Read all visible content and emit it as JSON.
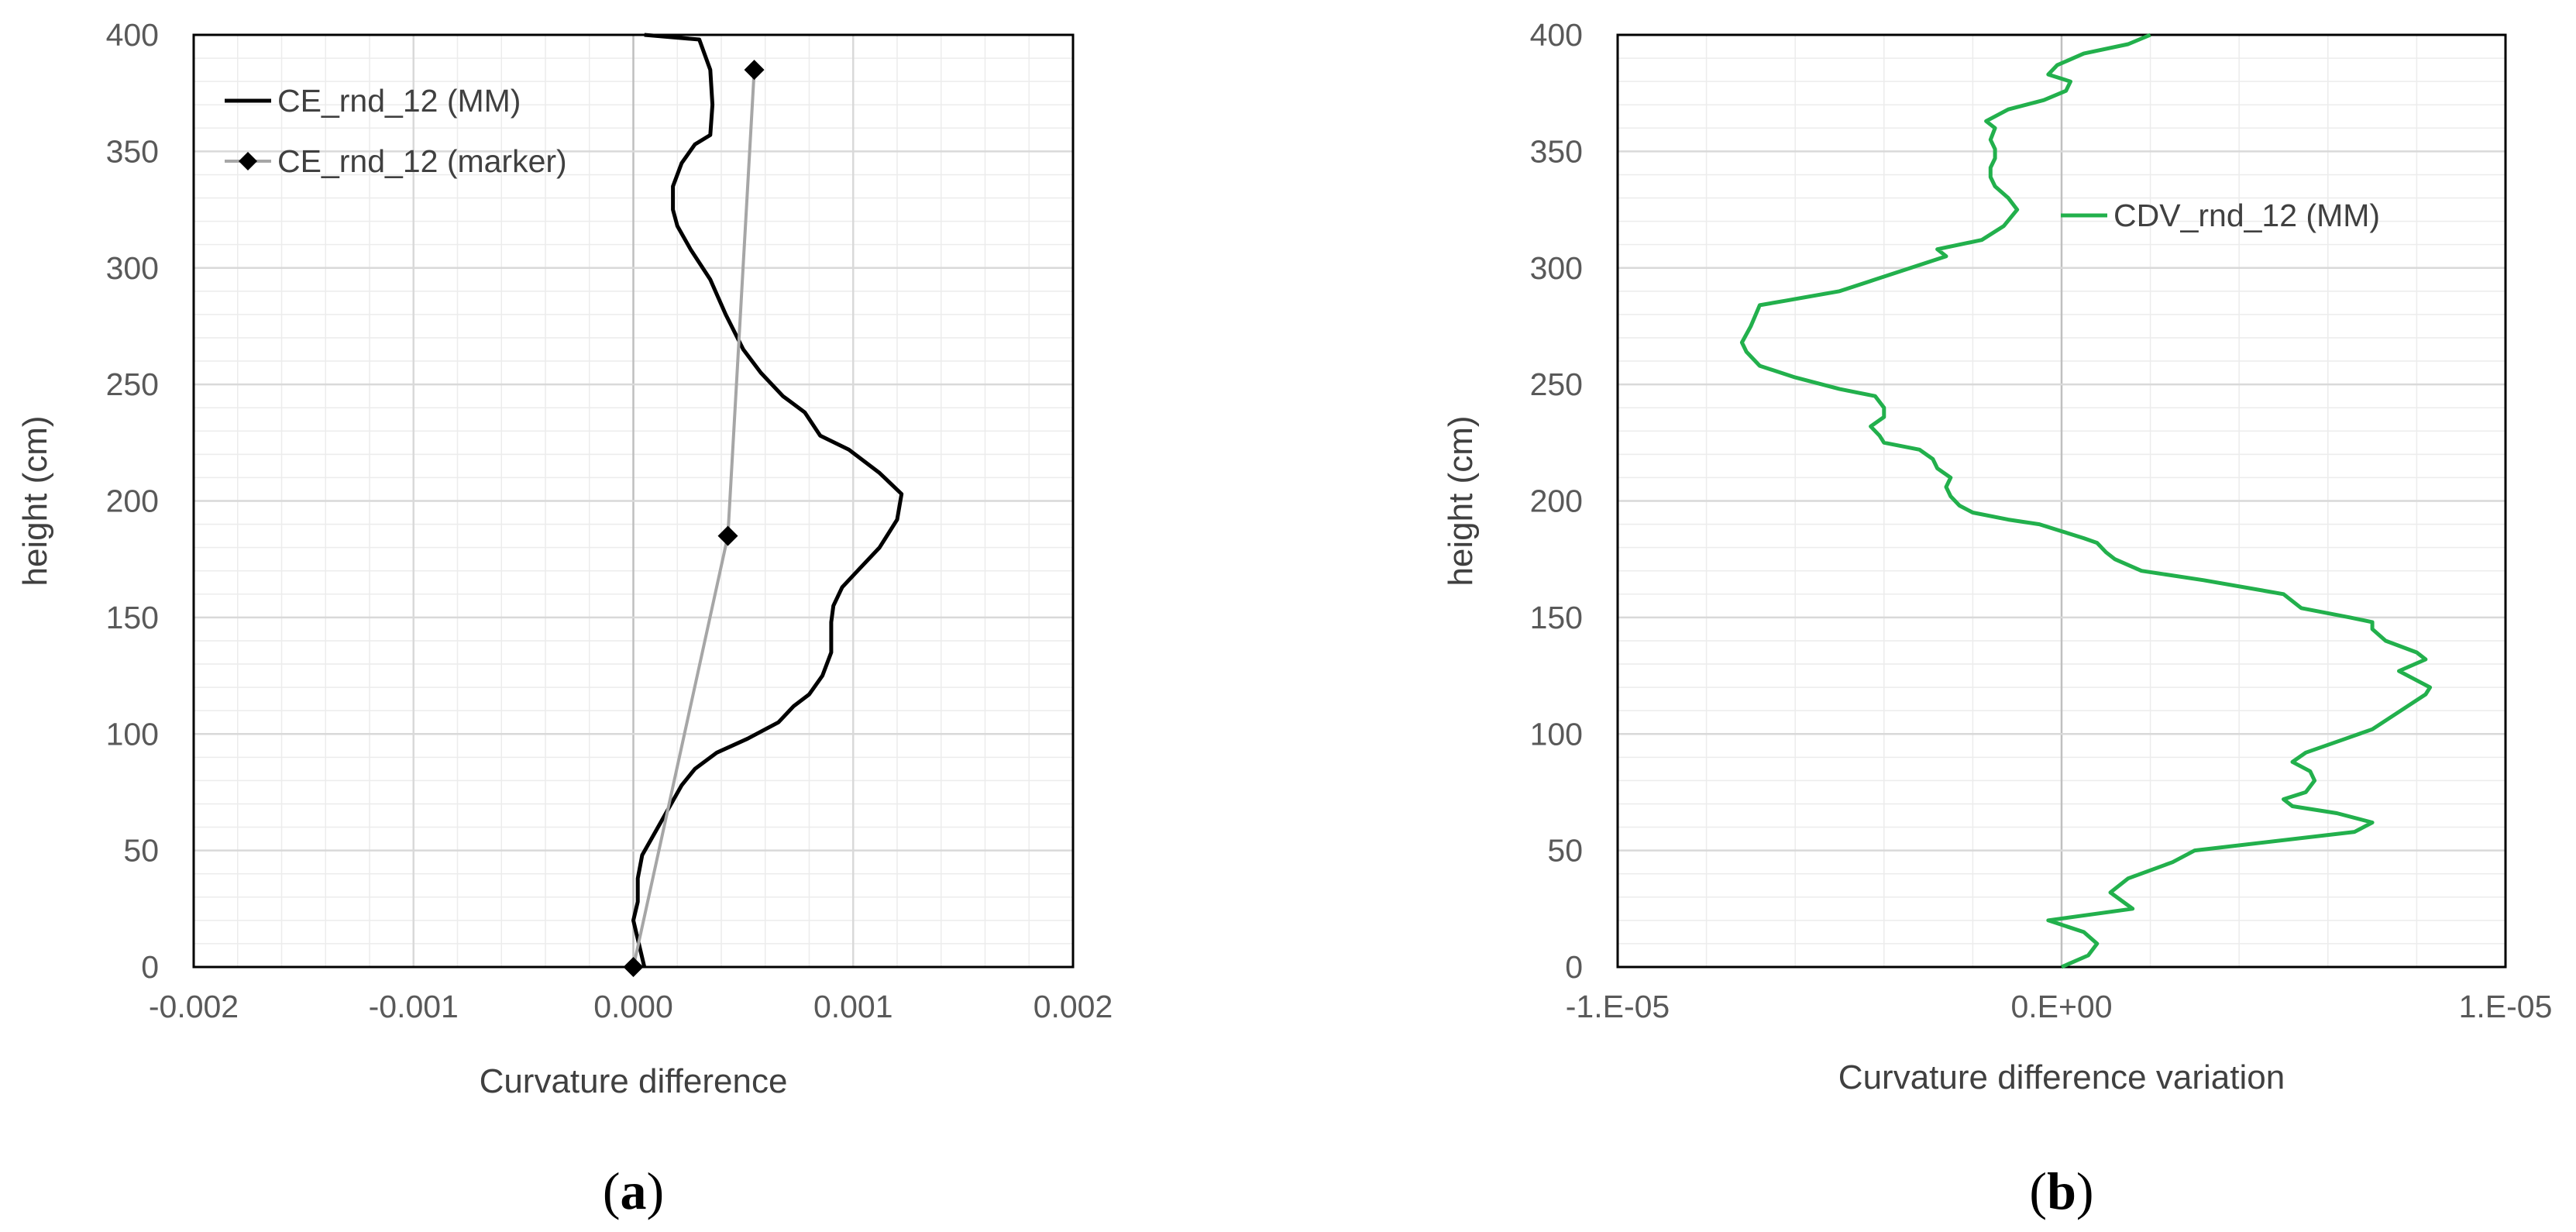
{
  "chart_data": [
    {
      "panel_label": "a",
      "type": "line",
      "xlabel": "Curvature difference",
      "ylabel": "height (cm)",
      "xlim": [
        -0.002,
        0.002
      ],
      "ylim": [
        0,
        400
      ],
      "x_ticks": [
        -0.002,
        -0.001,
        0.0,
        0.001,
        0.002
      ],
      "x_tick_labels": [
        "-0.002",
        "-0.001",
        "0.000",
        "0.001",
        "0.002"
      ],
      "y_ticks": [
        0,
        50,
        100,
        150,
        200,
        250,
        300,
        350,
        400
      ],
      "y_tick_labels": [
        "0",
        "50",
        "100",
        "150",
        "200",
        "250",
        "300",
        "350",
        "400"
      ],
      "grid": true,
      "legend_position": "top-left",
      "series": [
        {
          "name": "CE_rnd_12 (MM)",
          "color": "#000000",
          "marker": "none",
          "points": [
            [
              5e-05,
              400
            ],
            [
              0.0003,
              398
            ],
            [
              0.00035,
              385
            ],
            [
              0.00036,
              370
            ],
            [
              0.00035,
              357
            ],
            [
              0.00028,
              353
            ],
            [
              0.00022,
              345
            ],
            [
              0.00018,
              335
            ],
            [
              0.00018,
              325
            ],
            [
              0.0002,
              318
            ],
            [
              0.00026,
              308
            ],
            [
              0.00035,
              295
            ],
            [
              0.00042,
              280
            ],
            [
              0.0005,
              265
            ],
            [
              0.00058,
              255
            ],
            [
              0.00068,
              245
            ],
            [
              0.00078,
              238
            ],
            [
              0.00085,
              228
            ],
            [
              0.00098,
              222
            ],
            [
              0.00112,
              212
            ],
            [
              0.00122,
              203
            ],
            [
              0.0012,
              192
            ],
            [
              0.00112,
              180
            ],
            [
              0.00102,
              170
            ],
            [
              0.00095,
              163
            ],
            [
              0.00091,
              155
            ],
            [
              0.0009,
              148
            ],
            [
              0.0009,
              135
            ],
            [
              0.00086,
              125
            ],
            [
              0.0008,
              117
            ],
            [
              0.00073,
              112
            ],
            [
              0.00066,
              105
            ],
            [
              0.00052,
              98
            ],
            [
              0.00038,
              92
            ],
            [
              0.00028,
              85
            ],
            [
              0.00022,
              78
            ],
            [
              0.00016,
              68
            ],
            [
              0.0001,
              58
            ],
            [
              4e-05,
              48
            ],
            [
              2e-05,
              38
            ],
            [
              2e-05,
              28
            ],
            [
              0.0,
              20
            ],
            [
              2e-05,
              12
            ],
            [
              5e-05,
              0
            ]
          ]
        },
        {
          "name": "CE_rnd_12 (marker)",
          "color": "#a6a6a6",
          "marker": "diamond",
          "marker_color": "#000000",
          "points": [
            [
              0.0,
              0
            ],
            [
              0.00043,
              185
            ],
            [
              0.00055,
              385
            ]
          ]
        }
      ]
    },
    {
      "panel_label": "b",
      "type": "line",
      "xlabel": "Curvature difference variation",
      "ylabel": "height (cm)",
      "xlim": [
        -1e-05,
        1e-05
      ],
      "ylim": [
        0,
        400
      ],
      "x_ticks": [
        -1e-05,
        0,
        1e-05
      ],
      "x_tick_labels": [
        "-1.E-05",
        "0.E+00",
        "1.E-05"
      ],
      "y_ticks": [
        0,
        50,
        100,
        150,
        200,
        250,
        300,
        350,
        400
      ],
      "y_tick_labels": [
        "0",
        "50",
        "100",
        "150",
        "200",
        "250",
        "300",
        "350",
        "400"
      ],
      "grid": true,
      "legend_position": "top-right",
      "series": [
        {
          "name": "CDV_rnd_12 (MM)",
          "color": "#22b04c",
          "marker": "none",
          "points": [
            [
              2e-06,
              400
            ],
            [
              1.5e-06,
              396
            ],
            [
              5e-07,
              392
            ],
            [
              -1e-07,
              387
            ],
            [
              -3e-07,
              383
            ],
            [
              2e-07,
              380
            ],
            [
              1e-07,
              376
            ],
            [
              -4e-07,
              372
            ],
            [
              -1.2e-06,
              368
            ],
            [
              -1.7e-06,
              363
            ],
            [
              -1.5e-06,
              360
            ],
            [
              -1.6e-06,
              355
            ],
            [
              -1.5e-06,
              351
            ],
            [
              -1.5e-06,
              347
            ],
            [
              -1.6e-06,
              343
            ],
            [
              -1.6e-06,
              339
            ],
            [
              -1.5e-06,
              335
            ],
            [
              -1.2e-06,
              330
            ],
            [
              -1e-06,
              325
            ],
            [
              -1.3e-06,
              318
            ],
            [
              -1.8e-06,
              312
            ],
            [
              -2.8e-06,
              308
            ],
            [
              -2.6e-06,
              305
            ],
            [
              -3.4e-06,
              300
            ],
            [
              -4.2e-06,
              295
            ],
            [
              -5e-06,
              290
            ],
            [
              -6.2e-06,
              286
            ],
            [
              -6.8e-06,
              284
            ],
            [
              -7e-06,
              275
            ],
            [
              -7.2e-06,
              268
            ],
            [
              -7.1e-06,
              264
            ],
            [
              -6.8e-06,
              258
            ],
            [
              -6e-06,
              253
            ],
            [
              -5e-06,
              248
            ],
            [
              -4.2e-06,
              245
            ],
            [
              -4e-06,
              240
            ],
            [
              -4e-06,
              236
            ],
            [
              -4.3e-06,
              232
            ],
            [
              -4.1e-06,
              228
            ],
            [
              -4e-06,
              225
            ],
            [
              -3.2e-06,
              222
            ],
            [
              -2.9e-06,
              218
            ],
            [
              -2.8e-06,
              214
            ],
            [
              -2.5e-06,
              210
            ],
            [
              -2.6e-06,
              206
            ],
            [
              -2.5e-06,
              202
            ],
            [
              -2.3e-06,
              198
            ],
            [
              -2e-06,
              195
            ],
            [
              -1.2e-06,
              192
            ],
            [
              -5e-07,
              190
            ],
            [
              0.0,
              187
            ],
            [
              5e-07,
              184
            ],
            [
              8e-07,
              182
            ],
            [
              1e-06,
              178
            ],
            [
              1.2e-06,
              175
            ],
            [
              1.8e-06,
              170
            ],
            [
              3.2e-06,
              166
            ],
            [
              5e-06,
              160
            ],
            [
              5.4e-06,
              154
            ],
            [
              6.5e-06,
              150
            ],
            [
              7e-06,
              148
            ],
            [
              7e-06,
              145
            ],
            [
              7.3e-06,
              140
            ],
            [
              8e-06,
              135
            ],
            [
              8.2e-06,
              132
            ],
            [
              7.6e-06,
              127
            ],
            [
              7.9e-06,
              124
            ],
            [
              8.3e-06,
              120
            ],
            [
              8.2e-06,
              117
            ],
            [
              7.8e-06,
              112
            ],
            [
              7.4e-06,
              107
            ],
            [
              7e-06,
              102
            ],
            [
              6.4e-06,
              98
            ],
            [
              5.5e-06,
              92
            ],
            [
              5.2e-06,
              88
            ],
            [
              5.6e-06,
              84
            ],
            [
              5.7e-06,
              80
            ],
            [
              5.5e-06,
              75
            ],
            [
              5e-06,
              72
            ],
            [
              5.2e-06,
              69
            ],
            [
              6.2e-06,
              66
            ],
            [
              7e-06,
              62
            ],
            [
              6.6e-06,
              58
            ],
            [
              3e-06,
              50
            ],
            [
              2.5e-06,
              45
            ],
            [
              1.5e-06,
              38
            ],
            [
              1.1e-06,
              32
            ],
            [
              1.6e-06,
              25
            ],
            [
              -3e-07,
              20
            ],
            [
              5e-07,
              15
            ],
            [
              8e-07,
              10
            ],
            [
              6e-07,
              5
            ],
            [
              0.0,
              0
            ]
          ]
        }
      ]
    }
  ]
}
